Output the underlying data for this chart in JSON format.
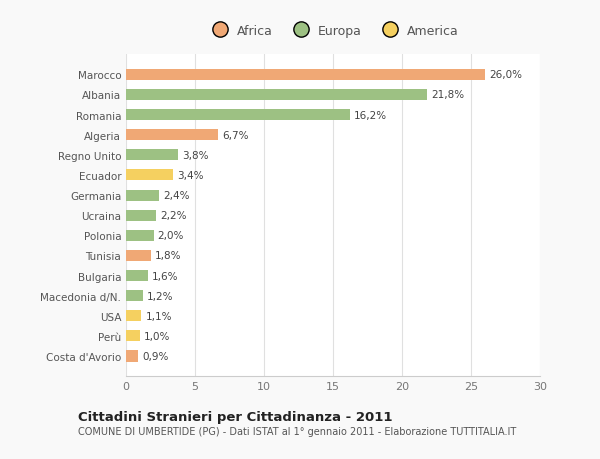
{
  "categories": [
    "Marocco",
    "Albania",
    "Romania",
    "Algeria",
    "Regno Unito",
    "Ecuador",
    "Germania",
    "Ucraina",
    "Polonia",
    "Tunisia",
    "Bulgaria",
    "Macedonia d/N.",
    "USA",
    "Perù",
    "Costa d'Avorio"
  ],
  "values": [
    26.0,
    21.8,
    16.2,
    6.7,
    3.8,
    3.4,
    2.4,
    2.2,
    2.0,
    1.8,
    1.6,
    1.2,
    1.1,
    1.0,
    0.9
  ],
  "labels": [
    "26,0%",
    "21,8%",
    "16,2%",
    "6,7%",
    "3,8%",
    "3,4%",
    "2,4%",
    "2,2%",
    "2,0%",
    "1,8%",
    "1,6%",
    "1,2%",
    "1,1%",
    "1,0%",
    "0,9%"
  ],
  "colors": [
    "#F0A875",
    "#9DC183",
    "#9DC183",
    "#F0A875",
    "#9DC183",
    "#F5D060",
    "#9DC183",
    "#9DC183",
    "#9DC183",
    "#F0A875",
    "#9DC183",
    "#9DC183",
    "#F5D060",
    "#F5D060",
    "#F0A875"
  ],
  "legend_labels": [
    "Africa",
    "Europa",
    "America"
  ],
  "legend_colors": [
    "#F0A875",
    "#9DC183",
    "#F5D060"
  ],
  "xlim": [
    0,
    30
  ],
  "xticks": [
    0,
    5,
    10,
    15,
    20,
    25,
    30
  ],
  "title": "Cittadini Stranieri per Cittadinanza - 2011",
  "subtitle": "COMUNE DI UMBERTIDE (PG) - Dati ISTAT al 1° gennaio 2011 - Elaborazione TUTTITALIA.IT",
  "background_color": "#f9f9f9",
  "bar_background": "#ffffff",
  "grid_color": "#e0e0e0"
}
